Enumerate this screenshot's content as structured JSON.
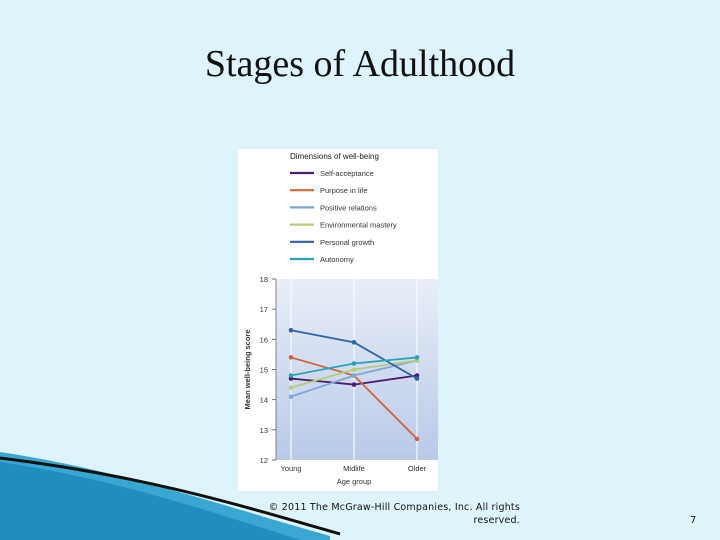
{
  "slide": {
    "title": "Stages of Adulthood",
    "copyright": "© 2011 The McGraw-Hill Companies, Inc. All rights reserved.",
    "slide_number": "7"
  },
  "chart_data": {
    "type": "line",
    "legend_title": "Dimensions of well-being",
    "legend_position": "top",
    "xlabel": "Age group",
    "ylabel": "Mean well-being score",
    "categories": [
      "Young",
      "Midlife",
      "Older"
    ],
    "ylim": [
      12,
      18
    ],
    "yticks": [
      12,
      13,
      14,
      15,
      16,
      17,
      18
    ],
    "grid": true,
    "series": [
      {
        "name": "Self-acceptance",
        "color": "#4a1e6e",
        "values": [
          14.7,
          14.5,
          14.8
        ]
      },
      {
        "name": "Purpose in life",
        "color": "#d0643e",
        "values": [
          15.4,
          14.8,
          12.7
        ]
      },
      {
        "name": "Positive relations",
        "color": "#7fa6d6",
        "values": [
          14.1,
          14.8,
          15.3
        ]
      },
      {
        "name": "Environmental mastery",
        "color": "#b5cc7a",
        "values": [
          14.4,
          15.0,
          15.3
        ]
      },
      {
        "name": "Personal growth",
        "color": "#2f64a8",
        "values": [
          16.3,
          15.9,
          14.7
        ]
      },
      {
        "name": "Autonomy",
        "color": "#2aa3b8",
        "values": [
          14.8,
          15.2,
          15.4
        ]
      }
    ]
  }
}
